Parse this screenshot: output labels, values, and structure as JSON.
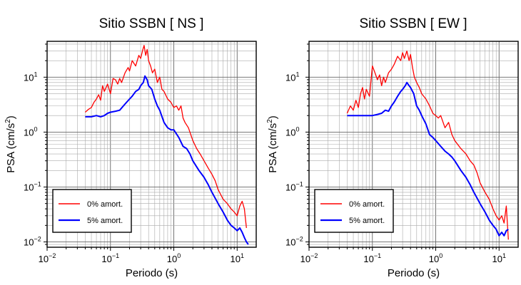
{
  "chart_data": [
    {
      "type": "line",
      "title": "Sitio SSBN [ NS ]",
      "xlabel": "Periodo (s)",
      "ylabel_main": "PSA (cm/s",
      "ylabel_sup": "2",
      "ylabel_end": ")",
      "xscale": "log",
      "yscale": "log",
      "xlim": [
        0.01,
        20
      ],
      "ylim": [
        0.008,
        45
      ],
      "grid": true,
      "legend_position": "bottom-left",
      "xticks": [
        {
          "base": "10",
          "exp": "−2"
        },
        {
          "base": "10",
          "exp": "−1"
        },
        {
          "base": "10",
          "exp": "0"
        },
        {
          "base": "10",
          "exp": "1"
        }
      ],
      "yticks": [
        {
          "base": "10",
          "exp": "−2"
        },
        {
          "base": "10",
          "exp": "−1"
        },
        {
          "base": "10",
          "exp": "0"
        },
        {
          "base": "10",
          "exp": "1"
        }
      ],
      "series": [
        {
          "name": "0% amort.",
          "color": "#ff0000",
          "x": [
            0.04,
            0.045,
            0.05,
            0.055,
            0.06,
            0.065,
            0.07,
            0.075,
            0.08,
            0.09,
            0.1,
            0.11,
            0.12,
            0.13,
            0.14,
            0.15,
            0.17,
            0.19,
            0.2,
            0.22,
            0.25,
            0.28,
            0.3,
            0.32,
            0.34,
            0.36,
            0.38,
            0.4,
            0.43,
            0.46,
            0.5,
            0.55,
            0.6,
            0.65,
            0.7,
            0.8,
            0.9,
            1.0,
            1.1,
            1.2,
            1.3,
            1.4,
            1.5,
            1.7,
            2.0,
            2.3,
            2.6,
            3.0,
            3.5,
            4.0,
            4.5,
            5.0,
            6.0,
            7.0,
            8.0,
            9.0,
            10.0,
            11.0,
            12.0,
            13.0,
            14.0
          ],
          "y": [
            2.3,
            2.6,
            2.8,
            3.5,
            4.0,
            4.8,
            3.8,
            7.0,
            5.5,
            7.5,
            5.0,
            9.5,
            9.0,
            7.5,
            9.5,
            8.0,
            12.0,
            15.0,
            13.0,
            20.0,
            16.0,
            25.0,
            22.0,
            30.0,
            38.0,
            25.0,
            32.0,
            20.0,
            16.0,
            12.0,
            14.0,
            8.0,
            10.0,
            6.0,
            5.5,
            4.0,
            3.5,
            2.8,
            3.0,
            2.5,
            3.0,
            1.8,
            1.5,
            1.2,
            0.7,
            0.5,
            0.4,
            0.3,
            0.22,
            0.17,
            0.13,
            0.09,
            0.06,
            0.05,
            0.04,
            0.035,
            0.03,
            0.045,
            0.055,
            0.04,
            0.018
          ]
        },
        {
          "name": "5% amort.",
          "color": "#0000ff",
          "x": [
            0.04,
            0.05,
            0.06,
            0.07,
            0.08,
            0.09,
            0.1,
            0.12,
            0.14,
            0.16,
            0.18,
            0.2,
            0.22,
            0.25,
            0.28,
            0.3,
            0.33,
            0.35,
            0.38,
            0.4,
            0.45,
            0.5,
            0.55,
            0.6,
            0.7,
            0.8,
            0.9,
            1.0,
            1.2,
            1.4,
            1.6,
            1.8,
            2.0,
            2.5,
            3.0,
            3.5,
            4.0,
            5.0,
            6.0,
            7.0,
            8.0,
            9.0,
            10.0,
            11.0,
            12.0,
            13.0,
            14.0,
            15.0
          ],
          "y": [
            1.9,
            1.9,
            2.0,
            1.9,
            2.0,
            2.2,
            2.3,
            2.4,
            2.5,
            3.0,
            3.5,
            4.0,
            4.5,
            5.5,
            6.0,
            7.0,
            8.0,
            10.5,
            9.0,
            7.0,
            6.0,
            4.0,
            3.0,
            2.5,
            1.5,
            1.2,
            1.1,
            1.1,
            0.8,
            0.55,
            0.5,
            0.4,
            0.3,
            0.2,
            0.15,
            0.11,
            0.08,
            0.05,
            0.035,
            0.025,
            0.02,
            0.018,
            0.016,
            0.018,
            0.015,
            0.012,
            0.01,
            0.009
          ]
        }
      ]
    },
    {
      "type": "line",
      "title": "Sitio SSBN [ EW ]",
      "xlabel": "Periodo (s)",
      "ylabel_main": "PSA (cm/s",
      "ylabel_sup": "2",
      "ylabel_end": ")",
      "xscale": "log",
      "yscale": "log",
      "xlim": [
        0.01,
        20
      ],
      "ylim": [
        0.008,
        45
      ],
      "grid": true,
      "legend_position": "bottom-left",
      "xticks": [
        {
          "base": "10",
          "exp": "−2"
        },
        {
          "base": "10",
          "exp": "−1"
        },
        {
          "base": "10",
          "exp": "0"
        },
        {
          "base": "10",
          "exp": "1"
        }
      ],
      "yticks": [
        {
          "base": "10",
          "exp": "−2"
        },
        {
          "base": "10",
          "exp": "−1"
        },
        {
          "base": "10",
          "exp": "0"
        },
        {
          "base": "10",
          "exp": "1"
        }
      ],
      "series": [
        {
          "name": "0% amort.",
          "color": "#ff0000",
          "x": [
            0.04,
            0.045,
            0.05,
            0.055,
            0.06,
            0.065,
            0.07,
            0.075,
            0.08,
            0.09,
            0.1,
            0.11,
            0.12,
            0.13,
            0.14,
            0.15,
            0.16,
            0.18,
            0.2,
            0.22,
            0.25,
            0.28,
            0.3,
            0.32,
            0.35,
            0.38,
            0.4,
            0.43,
            0.46,
            0.5,
            0.55,
            0.6,
            0.7,
            0.8,
            0.9,
            1.0,
            1.1,
            1.2,
            1.4,
            1.6,
            1.8,
            2.0,
            2.5,
            3.0,
            3.5,
            4.0,
            4.5,
            5.0,
            6.0,
            7.0,
            8.0,
            9.0,
            10.0,
            11.0,
            12.0,
            13.0,
            14.0
          ],
          "y": [
            2.2,
            3.0,
            2.5,
            3.8,
            2.8,
            5.0,
            6.5,
            4.0,
            6.0,
            4.5,
            16.0,
            12.0,
            9.0,
            11.0,
            7.0,
            10.0,
            8.0,
            12.0,
            14.0,
            17.0,
            24.0,
            20.0,
            28.0,
            22.0,
            30.0,
            20.0,
            26.0,
            15.0,
            10.0,
            8.0,
            6.5,
            5.0,
            4.0,
            3.0,
            2.2,
            2.0,
            1.8,
            2.0,
            1.2,
            1.5,
            0.9,
            0.7,
            0.5,
            0.4,
            0.3,
            0.25,
            0.18,
            0.12,
            0.08,
            0.06,
            0.04,
            0.03,
            0.025,
            0.03,
            0.022,
            0.045,
            0.011
          ]
        },
        {
          "name": "5% amort.",
          "color": "#0000ff",
          "x": [
            0.04,
            0.05,
            0.06,
            0.07,
            0.08,
            0.09,
            0.1,
            0.12,
            0.14,
            0.16,
            0.18,
            0.2,
            0.22,
            0.25,
            0.28,
            0.3,
            0.33,
            0.35,
            0.38,
            0.4,
            0.45,
            0.5,
            0.55,
            0.6,
            0.7,
            0.8,
            0.9,
            1.0,
            1.2,
            1.4,
            1.6,
            1.8,
            2.0,
            2.5,
            3.0,
            3.5,
            4.0,
            5.0,
            6.0,
            7.0,
            8.0,
            9.0,
            10.0,
            11.0,
            12.0,
            13.0,
            14.0
          ],
          "y": [
            2.0,
            2.0,
            2.0,
            2.0,
            2.0,
            2.0,
            2.0,
            2.1,
            2.2,
            2.5,
            2.4,
            3.0,
            3.5,
            4.5,
            5.5,
            6.0,
            7.0,
            8.0,
            7.0,
            6.5,
            5.0,
            3.0,
            2.5,
            2.0,
            1.4,
            0.9,
            0.8,
            0.7,
            0.55,
            0.45,
            0.4,
            0.35,
            0.3,
            0.2,
            0.15,
            0.11,
            0.08,
            0.05,
            0.035,
            0.025,
            0.02,
            0.017,
            0.013,
            0.015,
            0.013,
            0.016,
            0.017
          ]
        }
      ]
    }
  ]
}
